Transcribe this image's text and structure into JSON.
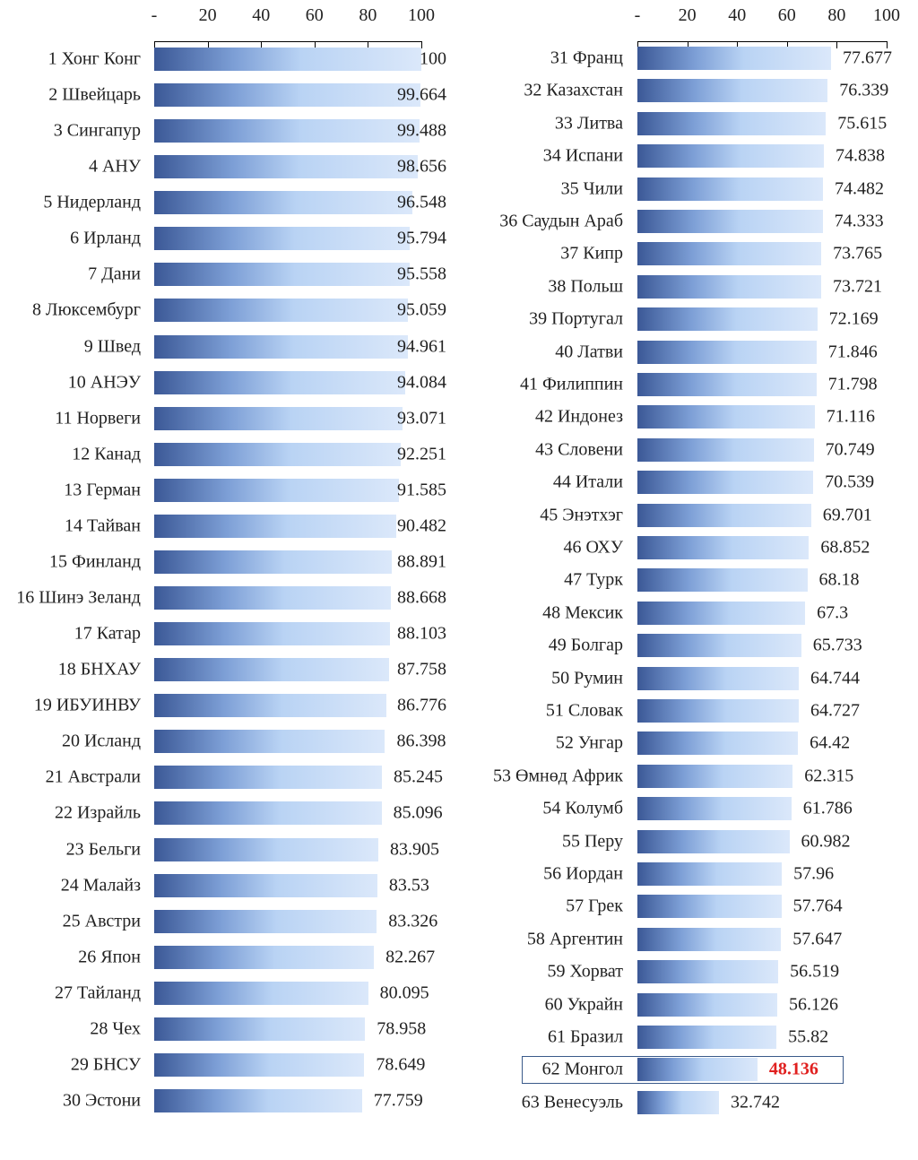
{
  "chart_data": [
    {
      "type": "bar",
      "orientation": "horizontal",
      "xlim": [
        0,
        100
      ],
      "ticks": [
        "-",
        "20",
        "40",
        "60",
        "80",
        "100"
      ],
      "tick_values": [
        0,
        20,
        40,
        60,
        80,
        100
      ],
      "categories": [
        "1 Хонг Конг",
        "2 Швейцарь",
        "3 Сингапур",
        "4 АНУ",
        "5 Нидерланд",
        "6 Ирланд",
        "7 Дани",
        "8 Люксембург",
        "9 Швед",
        "10 АНЭУ",
        "11 Норвеги",
        "12 Канад",
        "13 Герман",
        "14 Тайван",
        "15 Финланд",
        "16 Шинэ Зеланд",
        "17 Катар",
        "18 БНХАУ",
        "19 ИБУИНВУ",
        "20 Исланд",
        "21 Австрали",
        "22 Израйль",
        "23 Бельги",
        "24 Малайз",
        "25 Австри",
        "26 Япон",
        "27 Тайланд",
        "28 Чех",
        "29 БНСУ",
        "30 Эстони"
      ],
      "values": [
        "100",
        "99.664",
        "99.488",
        "98.656",
        "96.548",
        "95.794",
        "95.558",
        "95.059",
        "94.961",
        "94.084",
        "93.071",
        "92.251",
        "91.585",
        "90.482",
        "88.891",
        "88.668",
        "88.103",
        "87.758",
        "86.776",
        "86.398",
        "85.245",
        "85.096",
        "83.905",
        "83.53",
        "83.326",
        "82.267",
        "80.095",
        "78.958",
        "78.649",
        "77.759"
      ]
    },
    {
      "type": "bar",
      "orientation": "horizontal",
      "xlim": [
        0,
        100
      ],
      "ticks": [
        "-",
        "20",
        "40",
        "60",
        "80",
        "100"
      ],
      "tick_values": [
        0,
        20,
        40,
        60,
        80,
        100
      ],
      "categories": [
        "31 Франц",
        "32 Казахстан",
        "33 Литва",
        "34 Испани",
        "35 Чили",
        "36 Саудын Араб",
        "37 Кипр",
        "38 Польш",
        "39 Португал",
        "40 Латви",
        "41 Филиппин",
        "42 Индонез",
        "43 Словени",
        "44 Итали",
        "45 Энэтхэг",
        "46 ОХУ",
        "47 Турк",
        "48 Мексик",
        "49 Болгар",
        "50 Румин",
        "51 Словак",
        "52 Унгар",
        "53 Өмнөд Африк",
        "54 Колумб",
        "55 Перу",
        "56 Иордан",
        "57 Грек",
        "58 Аргентин",
        "59 Хорват",
        "60 Украйн",
        "61 Бразил",
        "62 Монгол",
        "63 Венесуэль"
      ],
      "values": [
        "77.677",
        "76.339",
        "75.615",
        "74.838",
        "74.482",
        "74.333",
        "73.765",
        "73.721",
        "72.169",
        "71.846",
        "71.798",
        "71.116",
        "70.749",
        "70.539",
        "69.701",
        "68.852",
        "68.18",
        "67.3",
        "65.733",
        "64.744",
        "64.727",
        "64.42",
        "62.315",
        "61.786",
        "60.982",
        "57.96",
        "57.764",
        "57.647",
        "56.519",
        "56.126",
        "55.82",
        "48.136",
        "32.742"
      ],
      "highlight_index": 31,
      "highlight_color": "#e0201f"
    }
  ]
}
